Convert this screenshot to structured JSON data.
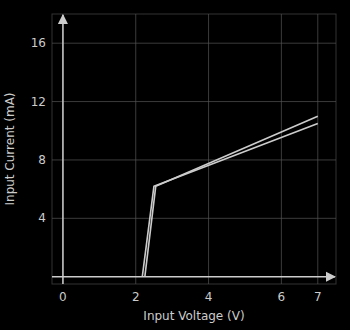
{
  "chart_data": {
    "type": "line",
    "xlabel": "Input Voltage (V)",
    "ylabel": "Input Current (mA)",
    "series": [
      {
        "color": "#cccccc",
        "x": [
          2.18,
          2.5,
          7.0
        ],
        "values": [
          0.0,
          6.2,
          10.5
        ]
      },
      {
        "color": "#cccccc",
        "x": [
          2.25,
          2.55,
          7.0
        ],
        "values": [
          0.0,
          6.2,
          11.0
        ]
      }
    ],
    "xlim": [
      -0.3,
      7.5
    ],
    "ylim": [
      -0.5,
      18.0
    ],
    "xticks": [
      0,
      2,
      4,
      6,
      7
    ],
    "yticks": [
      4,
      8,
      12,
      16
    ],
    "grid": true
  }
}
